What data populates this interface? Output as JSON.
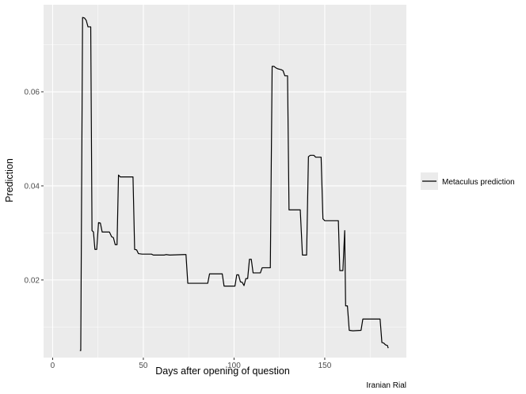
{
  "chart_data": {
    "type": "line",
    "xlabel": "Days after opening of question",
    "ylabel": "Prediction",
    "caption": "Iranian Rial",
    "xlim": [
      -5,
      195
    ],
    "ylim": [
      0.0035,
      0.0785
    ],
    "xticks": [
      0,
      50,
      100,
      150
    ],
    "xtick_labels": [
      "0",
      "50",
      "100",
      "150"
    ],
    "yticks": [
      0.02,
      0.04,
      0.06
    ],
    "ytick_labels": [
      "0.02",
      "0.04",
      "0.06"
    ],
    "grid": true,
    "legend": {
      "position": "right",
      "entries": [
        "Metaculus prediction"
      ]
    },
    "colors": {
      "panel": "#ebebeb",
      "grid": "#ffffff",
      "line": "#000000"
    },
    "series": [
      {
        "name": "Metaculus prediction",
        "points": [
          [
            15,
            0.005
          ],
          [
            15.5,
            0.005
          ],
          [
            16.5,
            0.0758
          ],
          [
            17.5,
            0.0757
          ],
          [
            18.5,
            0.0752
          ],
          [
            19.5,
            0.0738
          ],
          [
            21,
            0.0738
          ],
          [
            21.7,
            0.0305
          ],
          [
            22.5,
            0.0302
          ],
          [
            23.3,
            0.0265
          ],
          [
            24.3,
            0.0265
          ],
          [
            25.3,
            0.0322
          ],
          [
            26.3,
            0.0321
          ],
          [
            27.3,
            0.0302
          ],
          [
            31.3,
            0.0302
          ],
          [
            32.5,
            0.0292
          ],
          [
            33.5,
            0.029
          ],
          [
            34.5,
            0.0275
          ],
          [
            35.5,
            0.0275
          ],
          [
            36.3,
            0.0423
          ],
          [
            37.3,
            0.0419
          ],
          [
            44.3,
            0.0419
          ],
          [
            45.2,
            0.0265
          ],
          [
            46.3,
            0.0264
          ],
          [
            47.3,
            0.0256
          ],
          [
            49.3,
            0.0255
          ],
          [
            54.5,
            0.0255
          ],
          [
            55.5,
            0.0253
          ],
          [
            61.5,
            0.0253
          ],
          [
            62.5,
            0.0254
          ],
          [
            64.5,
            0.0253
          ],
          [
            72.5,
            0.0254
          ],
          [
            73.5,
            0.0254
          ],
          [
            74.5,
            0.0193
          ],
          [
            85.5,
            0.0193
          ],
          [
            86.5,
            0.0213
          ],
          [
            93.5,
            0.0213
          ],
          [
            94.5,
            0.0187
          ],
          [
            100.5,
            0.0187
          ],
          [
            101.5,
            0.0211
          ],
          [
            102.5,
            0.0211
          ],
          [
            103.5,
            0.0196
          ],
          [
            104.5,
            0.0195
          ],
          [
            105.5,
            0.0188
          ],
          [
            106.5,
            0.0203
          ],
          [
            107.5,
            0.0203
          ],
          [
            108.5,
            0.0244
          ],
          [
            109.5,
            0.0244
          ],
          [
            110.5,
            0.0215
          ],
          [
            114.5,
            0.0215
          ],
          [
            115.5,
            0.0226
          ],
          [
            120,
            0.0226
          ],
          [
            121,
            0.0654
          ],
          [
            122,
            0.0654
          ],
          [
            123,
            0.0651
          ],
          [
            124,
            0.0649
          ],
          [
            126,
            0.0647
          ],
          [
            127,
            0.0645
          ],
          [
            128,
            0.0634
          ],
          [
            129.5,
            0.0634
          ],
          [
            130.3,
            0.0349
          ],
          [
            136.5,
            0.0349
          ],
          [
            137.7,
            0.0253
          ],
          [
            140,
            0.0253
          ],
          [
            141,
            0.0462
          ],
          [
            142,
            0.0465
          ],
          [
            144,
            0.0465
          ],
          [
            145,
            0.0461
          ],
          [
            148,
            0.0461
          ],
          [
            149,
            0.033
          ],
          [
            150,
            0.0326
          ],
          [
            157.5,
            0.0326
          ],
          [
            158.3,
            0.022
          ],
          [
            160,
            0.022
          ],
          [
            161,
            0.0305
          ],
          [
            161.5,
            0.0145
          ],
          [
            162.5,
            0.0145
          ],
          [
            163.5,
            0.0093
          ],
          [
            165.5,
            0.0092
          ],
          [
            170,
            0.0093
          ],
          [
            171,
            0.0117
          ],
          [
            180.5,
            0.0117
          ],
          [
            181.5,
            0.0067
          ],
          [
            182.5,
            0.0066
          ],
          [
            183.5,
            0.0062
          ],
          [
            184.5,
            0.0061
          ],
          [
            185,
            0.0055
          ]
        ]
      }
    ]
  }
}
